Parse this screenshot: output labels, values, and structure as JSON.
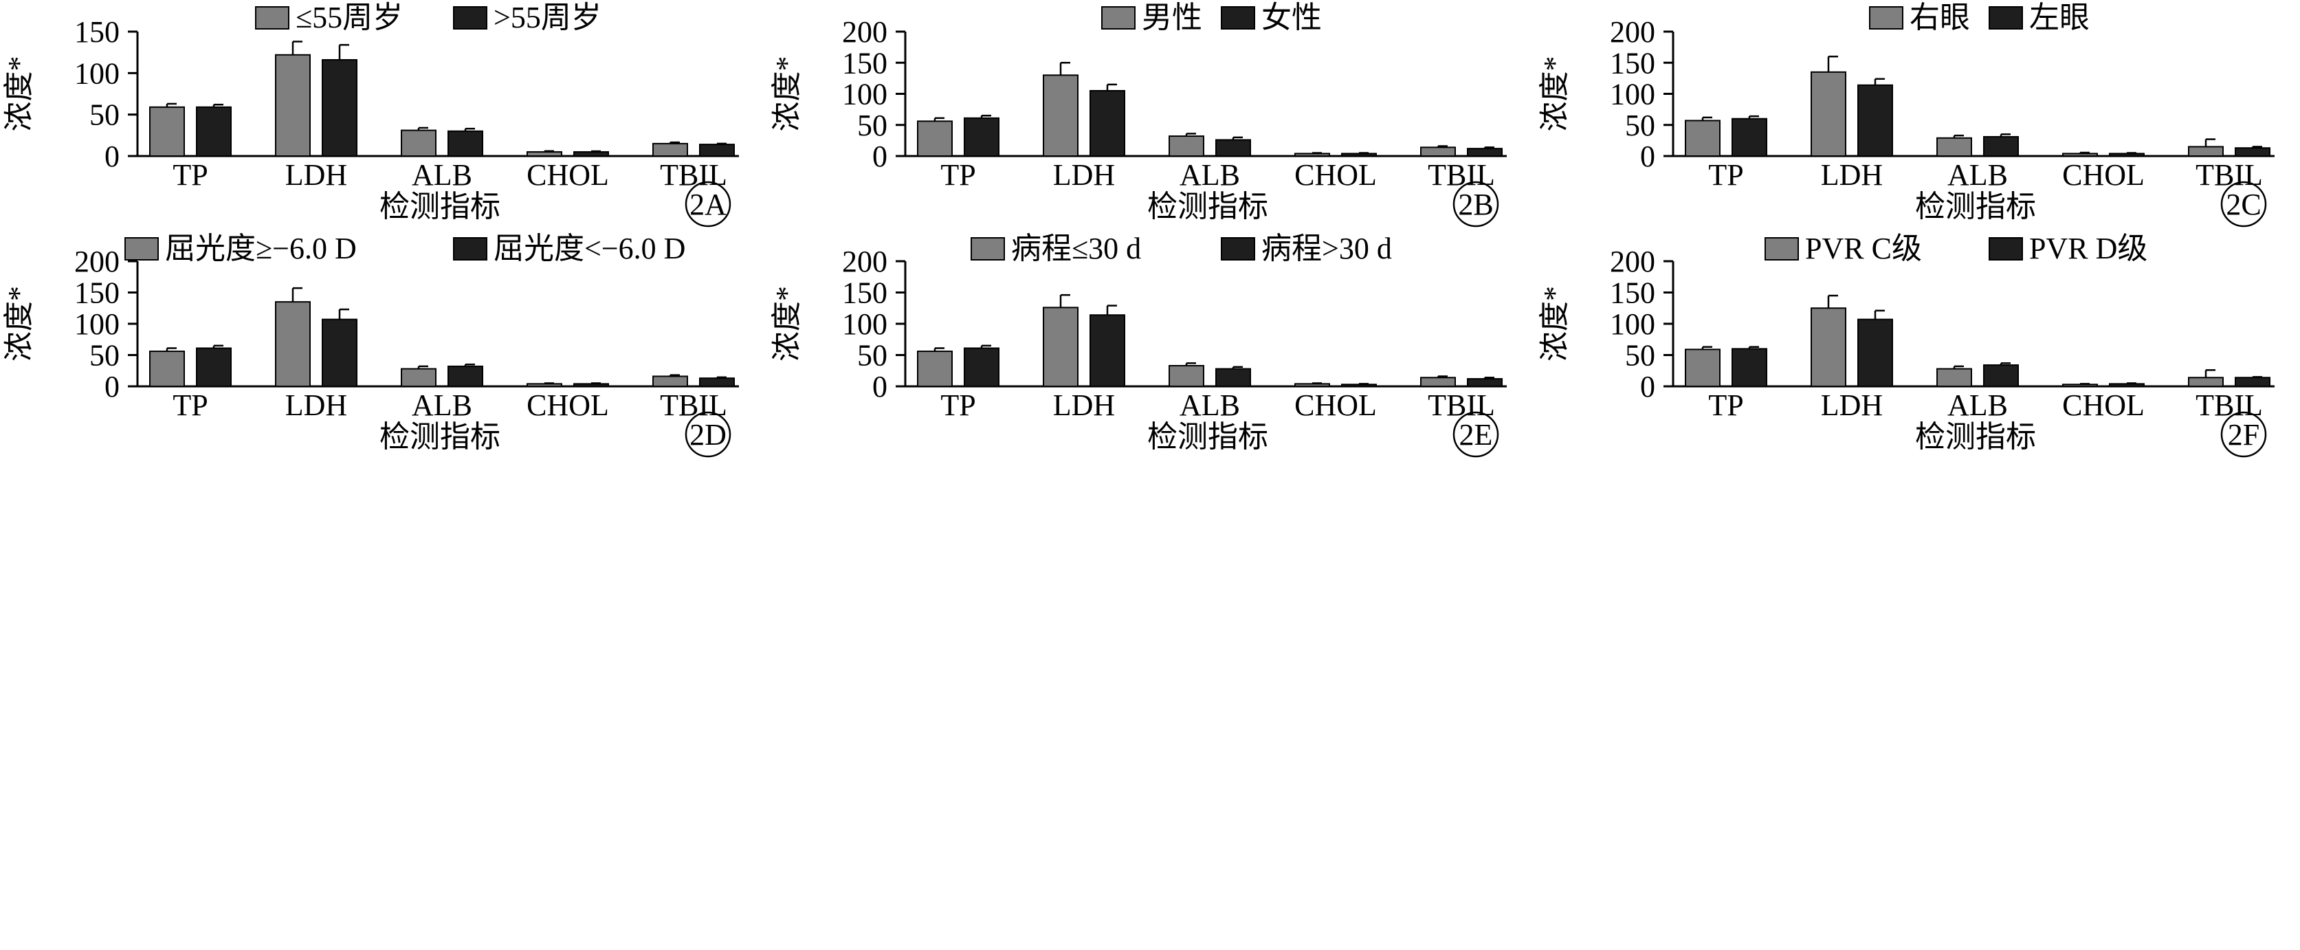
{
  "colors": {
    "series1": "#7f7f7f",
    "series2": "#1e1e1e"
  },
  "chart_data": [
    {
      "type": "bar",
      "panel_label": "2A",
      "categories": [
        "TP",
        "LDH",
        "ALB",
        "CHOL",
        "TBIL"
      ],
      "xlabel": "检测指标",
      "ylabel": "浓度*",
      "ylim": [
        0,
        150
      ],
      "yticks": [
        0,
        50,
        100,
        150
      ],
      "legend": "top",
      "series": [
        {
          "name": "≤55周岁",
          "values": [
            59,
            122,
            31,
            5,
            15
          ],
          "errors": [
            4,
            16,
            3,
            1,
            1.5
          ]
        },
        {
          "name": ">55周岁",
          "values": [
            59,
            116,
            30,
            5,
            14
          ],
          "errors": [
            3,
            18,
            3,
            0.8,
            1
          ]
        }
      ]
    },
    {
      "type": "bar",
      "panel_label": "2B",
      "categories": [
        "TP",
        "LDH",
        "ALB",
        "CHOL",
        "TBIL"
      ],
      "xlabel": "检测指标",
      "ylabel": "浓度*",
      "ylim": [
        0,
        200
      ],
      "yticks": [
        0,
        50,
        100,
        150,
        200
      ],
      "legend": "top",
      "series": [
        {
          "name": "男性",
          "values": [
            56,
            130,
            32,
            4,
            14
          ],
          "errors": [
            5,
            20,
            4,
            1,
            2
          ]
        },
        {
          "name": "女性",
          "values": [
            61,
            105,
            26,
            4,
            12
          ],
          "errors": [
            4,
            10,
            4,
            1,
            2
          ]
        }
      ]
    },
    {
      "type": "bar",
      "panel_label": "2C",
      "categories": [
        "TP",
        "LDH",
        "ALB",
        "CHOL",
        "TBIL"
      ],
      "xlabel": "检测指标",
      "ylabel": "浓度*",
      "ylim": [
        0,
        200
      ],
      "yticks": [
        0,
        50,
        100,
        150,
        200
      ],
      "legend": "top",
      "series": [
        {
          "name": "右眼",
          "values": [
            57,
            135,
            29,
            4,
            15
          ],
          "errors": [
            5,
            25,
            4,
            1.5,
            12
          ]
        },
        {
          "name": "左眼",
          "values": [
            60,
            114,
            31,
            4,
            13
          ],
          "errors": [
            4,
            10,
            4,
            1,
            2
          ]
        }
      ]
    },
    {
      "type": "bar",
      "panel_label": "2D",
      "categories": [
        "TP",
        "LDH",
        "ALB",
        "CHOL",
        "TBIL"
      ],
      "xlabel": "检测指标",
      "ylabel": "浓度*",
      "ylim": [
        0,
        200
      ],
      "yticks": [
        0,
        50,
        100,
        150,
        200
      ],
      "legend": "top",
      "series": [
        {
          "name": "屈光度≥−6.0 D",
          "values": [
            56,
            135,
            28,
            4,
            16
          ],
          "errors": [
            5,
            22,
            4,
            1,
            2
          ]
        },
        {
          "name": "屈光度<−6.0 D",
          "values": [
            61,
            107,
            32,
            4,
            13
          ],
          "errors": [
            4,
            16,
            3,
            1,
            1.5
          ]
        }
      ]
    },
    {
      "type": "bar",
      "panel_label": "2E",
      "categories": [
        "TP",
        "LDH",
        "ALB",
        "CHOL",
        "TBIL"
      ],
      "xlabel": "检测指标",
      "ylabel": "浓度*",
      "ylim": [
        0,
        200
      ],
      "yticks": [
        0,
        50,
        100,
        150,
        200
      ],
      "legend": "top",
      "series": [
        {
          "name": "病程≤30 d",
          "values": [
            56,
            126,
            33,
            4,
            14
          ],
          "errors": [
            5,
            20,
            4,
            1,
            2
          ]
        },
        {
          "name": "病程>30 d",
          "values": [
            61,
            114,
            28,
            3,
            12
          ],
          "errors": [
            4,
            15,
            3,
            1,
            2
          ]
        }
      ]
    },
    {
      "type": "bar",
      "panel_label": "2F",
      "categories": [
        "TP",
        "LDH",
        "ALB",
        "CHOL",
        "TBIL"
      ],
      "xlabel": "检测指标",
      "ylabel": "浓度*",
      "ylim": [
        0,
        200
      ],
      "yticks": [
        0,
        50,
        100,
        150,
        200
      ],
      "legend": "top",
      "series": [
        {
          "name": "PVR C级",
          "values": [
            59,
            125,
            28,
            3,
            14
          ],
          "errors": [
            4,
            20,
            4,
            1,
            12
          ]
        },
        {
          "name": "PVR D级",
          "values": [
            60,
            107,
            34,
            4,
            14
          ],
          "errors": [
            3,
            14,
            3,
            1,
            1
          ]
        }
      ]
    }
  ]
}
